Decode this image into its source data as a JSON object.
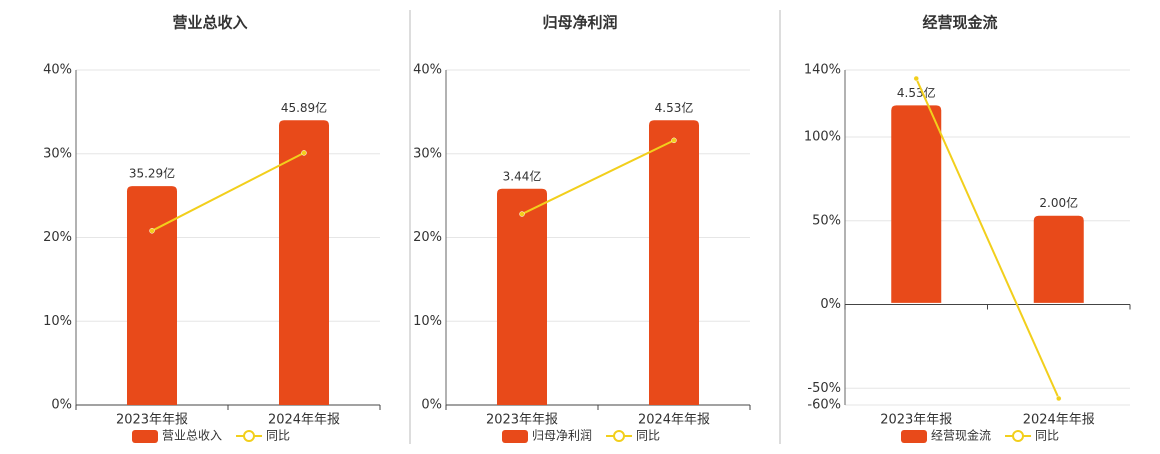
{
  "chart_data": [
    {
      "type": "combo",
      "title": "营业总收入",
      "categories": [
        "2023年年报",
        "2024年年报"
      ],
      "ylim": [
        0,
        40
      ],
      "yticks": [
        {
          "value": 0,
          "label": "0%"
        },
        {
          "value": 10,
          "label": "10%"
        },
        {
          "value": 20,
          "label": "20%"
        },
        {
          "value": 30,
          "label": "30%"
        },
        {
          "value": 40,
          "label": "40%"
        }
      ],
      "y2lim": [
        0,
        54
      ],
      "grid": true,
      "series": [
        {
          "name": "营业总收入",
          "type": "bar",
          "axis": "y2",
          "color": "#e84a1a",
          "values": [
            35.29,
            45.89
          ],
          "value_labels": [
            "35.29亿",
            "45.89亿"
          ]
        },
        {
          "name": "同比",
          "type": "line",
          "color": "#f2cf1c",
          "values": [
            20.8,
            30.1
          ]
        }
      ]
    },
    {
      "type": "combo",
      "title": "归母净利润",
      "categories": [
        "2023年年报",
        "2024年年报"
      ],
      "ylim": [
        0,
        40
      ],
      "yticks": [
        {
          "value": 0,
          "label": "0%"
        },
        {
          "value": 10,
          "label": "10%"
        },
        {
          "value": 20,
          "label": "20%"
        },
        {
          "value": 30,
          "label": "30%"
        },
        {
          "value": 40,
          "label": "40%"
        }
      ],
      "y2lim": [
        0,
        5.33
      ],
      "grid": true,
      "series": [
        {
          "name": "归母净利润",
          "type": "bar",
          "axis": "y2",
          "color": "#e84a1a",
          "values": [
            3.44,
            4.53
          ],
          "value_labels": [
            "3.44亿",
            "4.53亿"
          ]
        },
        {
          "name": "同比",
          "type": "line",
          "color": "#f2cf1c",
          "values": [
            22.8,
            31.6
          ]
        }
      ]
    },
    {
      "type": "combo",
      "title": "经营现金流",
      "categories": [
        "2023年年报",
        "2024年年报"
      ],
      "ylim": [
        -60,
        140
      ],
      "yticks": [
        {
          "value": -60,
          "label": "-60%"
        },
        {
          "value": -50,
          "label": "-50%"
        },
        {
          "value": 0,
          "label": "0%"
        },
        {
          "value": 50,
          "label": "50%"
        },
        {
          "value": 100,
          "label": "100%"
        },
        {
          "value": 140,
          "label": "140%"
        }
      ],
      "y2lim": [
        -2.34,
        5.34
      ],
      "grid": true,
      "series": [
        {
          "name": "经营现金流",
          "type": "bar",
          "axis": "y2",
          "color": "#e84a1a",
          "values": [
            4.53,
            2.0
          ],
          "value_labels": [
            "4.53亿",
            "2.00亿"
          ]
        },
        {
          "name": "同比",
          "type": "line",
          "color": "#f2cf1c",
          "values": [
            134.9,
            -56.1
          ]
        }
      ]
    }
  ]
}
